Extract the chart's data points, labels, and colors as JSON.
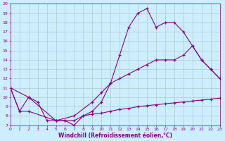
{
  "xlabel": "Windchill (Refroidissement éolien,°C)",
  "xlim": [
    0,
    23
  ],
  "ylim": [
    7,
    20
  ],
  "xticks": [
    0,
    1,
    2,
    3,
    4,
    5,
    6,
    7,
    8,
    9,
    10,
    11,
    12,
    13,
    14,
    15,
    16,
    17,
    18,
    19,
    20,
    21,
    22,
    23
  ],
  "yticks": [
    7,
    8,
    9,
    10,
    11,
    12,
    13,
    14,
    15,
    16,
    17,
    18,
    19,
    20
  ],
  "bg_color": "#cceeff",
  "grid_color": "#aacccc",
  "line_color": "#880088",
  "line1_x": [
    0,
    1,
    2,
    3,
    4,
    5,
    6,
    7,
    8,
    9,
    10,
    11,
    12,
    13,
    14,
    15,
    16,
    17,
    18,
    19,
    20,
    21,
    22,
    23
  ],
  "line1_y": [
    11,
    8.5,
    10,
    9.5,
    7.5,
    7.5,
    7.5,
    7.0,
    8.0,
    8.5,
    9.5,
    11.5,
    14.5,
    17.5,
    19.0,
    19.5,
    17.5,
    18.0,
    18.0,
    17.0,
    15.5,
    14.0,
    13.0,
    12.0
  ],
  "line2_x": [
    0,
    2,
    5,
    7,
    9,
    10,
    11,
    12,
    13,
    14,
    15,
    16,
    17,
    18,
    19,
    20,
    21,
    22,
    23
  ],
  "line2_y": [
    11,
    10,
    7.5,
    8.0,
    9.5,
    10.5,
    11.5,
    12.0,
    12.5,
    13.0,
    13.5,
    14.0,
    14.0,
    14.0,
    14.5,
    15.5,
    14.0,
    13.0,
    12.0
  ],
  "line3_x": [
    0,
    1,
    2,
    5,
    6,
    7,
    8,
    9,
    10,
    11,
    12,
    13,
    14,
    15,
    16,
    17,
    18,
    19,
    20,
    21,
    22,
    23
  ],
  "line3_y": [
    11,
    8.5,
    8.5,
    7.5,
    7.5,
    7.5,
    8.0,
    8.2,
    8.3,
    8.5,
    8.7,
    8.8,
    9.0,
    9.1,
    9.2,
    9.3,
    9.4,
    9.5,
    9.6,
    9.7,
    9.8,
    9.9
  ]
}
